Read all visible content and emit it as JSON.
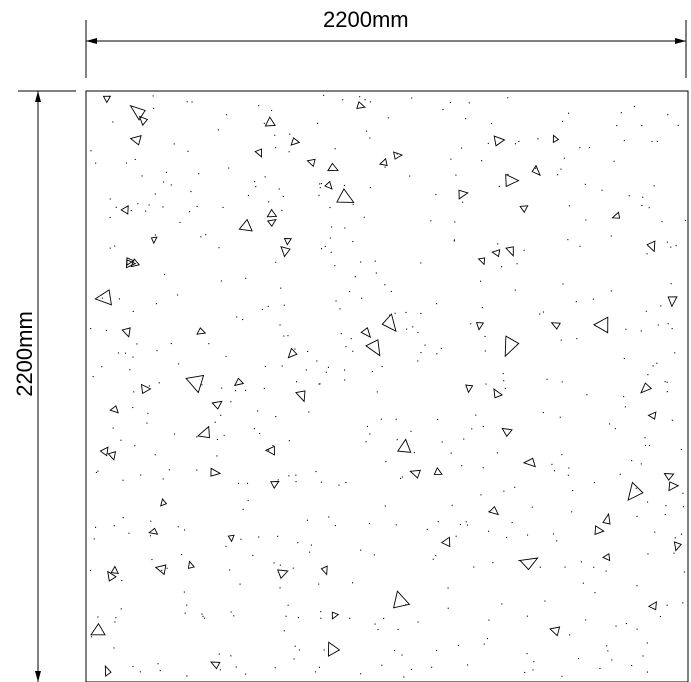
{
  "drawing": {
    "width_dimension_label": "2200mm",
    "height_dimension_label": "2200mm",
    "line_color": "#000000",
    "background_color": "#ffffff",
    "fill_pattern": "concrete-hatch"
  }
}
